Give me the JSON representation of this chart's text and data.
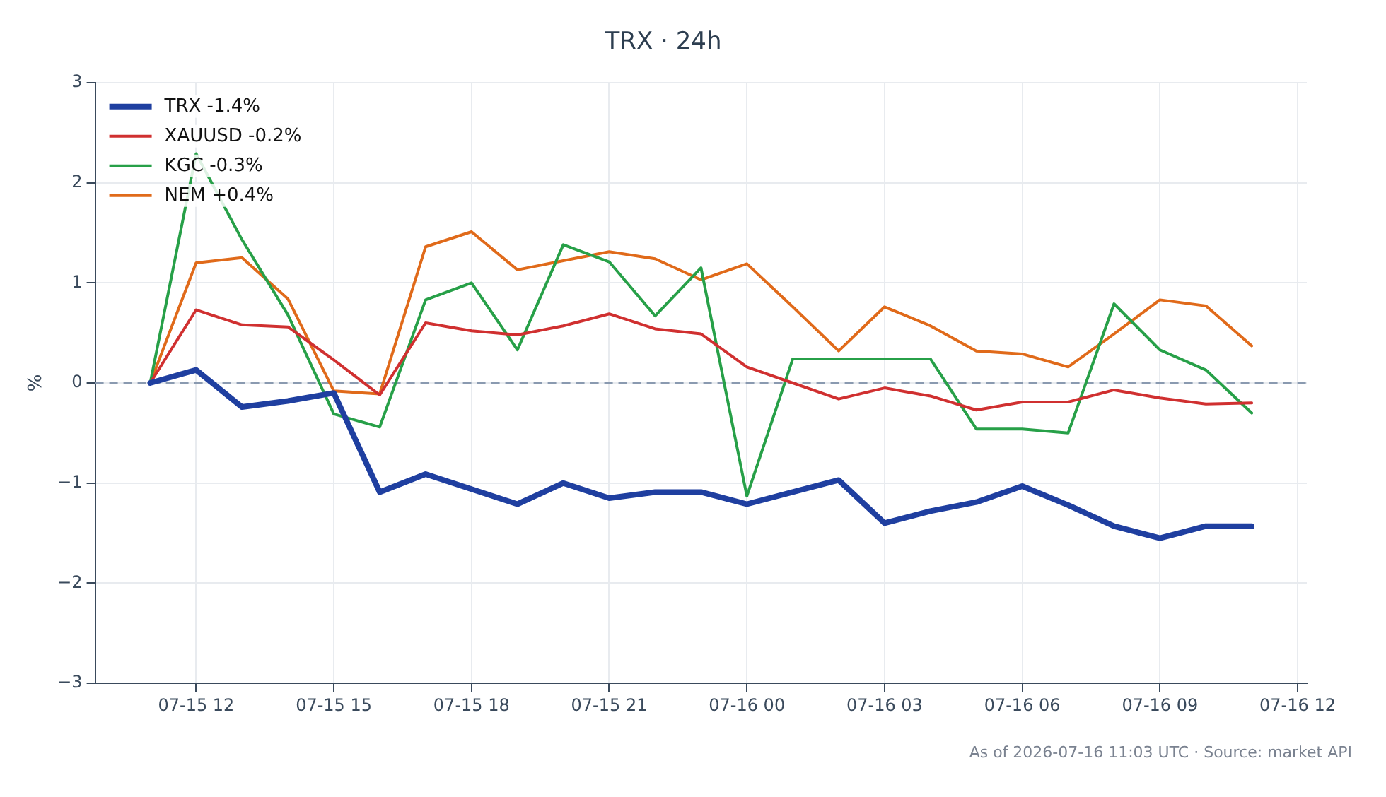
{
  "chart_data": {
    "type": "line",
    "title": "TRX · 24h",
    "ylabel": "%",
    "x": [
      "2026-07-15T11:00",
      "2026-07-15T12:00",
      "2026-07-15T13:00",
      "2026-07-15T14:00",
      "2026-07-15T15:00",
      "2026-07-15T16:00",
      "2026-07-15T17:00",
      "2026-07-15T18:00",
      "2026-07-15T19:00",
      "2026-07-15T20:00",
      "2026-07-15T21:00",
      "2026-07-15T22:00",
      "2026-07-15T23:00",
      "2026-07-16T00:00",
      "2026-07-16T01:00",
      "2026-07-16T02:00",
      "2026-07-16T03:00",
      "2026-07-16T04:00",
      "2026-07-16T05:00",
      "2026-07-16T06:00",
      "2026-07-16T07:00",
      "2026-07-16T08:00",
      "2026-07-16T09:00",
      "2026-07-16T10:00",
      "2026-07-16T11:00"
    ],
    "series": [
      {
        "name": "TRX -1.4%",
        "color": "#1f3fa0",
        "values": [
          0,
          0.13,
          -0.24,
          -0.18,
          -0.1,
          -1.09,
          -0.91,
          -1.06,
          -1.21,
          -1.0,
          -1.15,
          -1.09,
          -1.09,
          -1.21,
          -1.09,
          -0.97,
          -1.4,
          -1.28,
          -1.19,
          -1.03,
          -1.22,
          -1.43,
          -1.55,
          -1.43,
          -1.43
        ]
      },
      {
        "name": "XAUUSD -0.2%",
        "color": "#d03030",
        "values": [
          0,
          0.73,
          0.58,
          0.56,
          0.23,
          -0.12,
          0.6,
          0.52,
          0.48,
          0.57,
          0.69,
          0.54,
          0.49,
          0.16,
          0.0,
          -0.16,
          -0.05,
          -0.13,
          -0.27,
          -0.19,
          -0.19,
          -0.07,
          -0.15,
          -0.21,
          -0.2
        ]
      },
      {
        "name": "KGC -0.3%",
        "color": "#27a048",
        "values": [
          0,
          2.29,
          1.43,
          0.68,
          -0.31,
          -0.44,
          0.83,
          1.0,
          0.33,
          1.38,
          1.21,
          0.67,
          1.15,
          -1.13,
          0.24,
          0.24,
          0.24,
          0.24,
          -0.46,
          -0.46,
          -0.5,
          0.79,
          0.33,
          0.13,
          -0.3
        ]
      },
      {
        "name": "NEM +0.4%",
        "color": "#e06a1a",
        "values": [
          0,
          1.2,
          1.25,
          0.84,
          -0.08,
          -0.11,
          1.36,
          1.51,
          1.13,
          1.22,
          1.31,
          1.24,
          1.03,
          1.19,
          0.76,
          0.32,
          0.76,
          0.57,
          0.32,
          0.29,
          0.16,
          0.49,
          0.83,
          0.77,
          0.37
        ]
      }
    ],
    "xlim": [
      "2026-07-15T09:48",
      "2026-07-16T12:12"
    ],
    "xticks": [
      {
        "value": "2026-07-15T12:00",
        "label": "07-15 12"
      },
      {
        "value": "2026-07-15T15:00",
        "label": "07-15 15"
      },
      {
        "value": "2026-07-15T18:00",
        "label": "07-15 18"
      },
      {
        "value": "2026-07-15T21:00",
        "label": "07-15 21"
      },
      {
        "value": "2026-07-16T00:00",
        "label": "07-16 00"
      },
      {
        "value": "2026-07-16T03:00",
        "label": "07-16 03"
      },
      {
        "value": "2026-07-16T06:00",
        "label": "07-16 06"
      },
      {
        "value": "2026-07-16T09:00",
        "label": "07-16 09"
      },
      {
        "value": "2026-07-16T12:00",
        "label": "07-16 12"
      }
    ],
    "ylim": [
      -3,
      3
    ],
    "yticks": [
      {
        "value": -3,
        "label": "−3"
      },
      {
        "value": -2,
        "label": "−2"
      },
      {
        "value": -1,
        "label": "−1"
      },
      0,
      1,
      2,
      3
    ],
    "ref_lines": [
      {
        "axis": "y",
        "value": 0,
        "color": "#8a9ab0",
        "line_style": "dashed"
      }
    ],
    "grid": true,
    "legend": "top left",
    "line_style": "solid",
    "marker": "none",
    "annotations": [
      "As of 2026-07-16 11:03 UTC · Source: market API"
    ]
  }
}
